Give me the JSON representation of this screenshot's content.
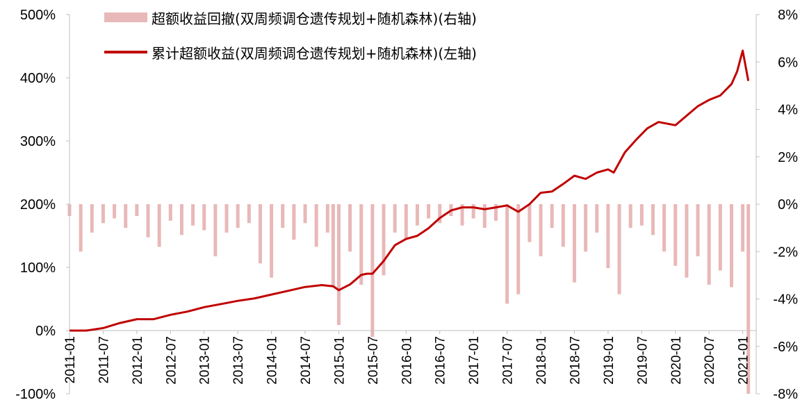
{
  "chart_data": {
    "type": "bar+line",
    "title": "",
    "x_ticks": [
      "2011-01",
      "2011-07",
      "2012-01",
      "2012-07",
      "2013-01",
      "2013-07",
      "2014-01",
      "2014-07",
      "2015-01",
      "2015-07",
      "2016-01",
      "2016-07",
      "2017-01",
      "2017-07",
      "2018-01",
      "2018-07",
      "2019-01",
      "2019-07",
      "2020-01",
      "2020-07",
      "2021-01"
    ],
    "left_axis": {
      "label": "",
      "ylim": [
        -100,
        500
      ],
      "ticks": [
        -100,
        0,
        100,
        200,
        300,
        400,
        500
      ],
      "tick_labels": [
        "-100%",
        "0%",
        "100%",
        "200%",
        "300%",
        "400%",
        "500%"
      ]
    },
    "right_axis": {
      "label": "",
      "ylim": [
        -8,
        8
      ],
      "ticks": [
        -8,
        -6,
        -4,
        -2,
        0,
        2,
        4,
        6,
        8
      ],
      "tick_labels": [
        "-8%",
        "-6%",
        "-4%",
        "-2%",
        "0%",
        "2%",
        "4%",
        "6%",
        "8%"
      ]
    },
    "legend_position": "top-left",
    "grid": false,
    "series": [
      {
        "name": "超额收益回撤(双周频调仓遗传规划+随机森林)(右轴)",
        "type": "bar",
        "axis": "right",
        "color": "#e9b8b8",
        "x": [
          "2011-01",
          "2011-03",
          "2011-05",
          "2011-07",
          "2011-09",
          "2011-11",
          "2012-01",
          "2012-03",
          "2012-05",
          "2012-07",
          "2012-09",
          "2012-11",
          "2013-01",
          "2013-03",
          "2013-05",
          "2013-07",
          "2013-09",
          "2013-11",
          "2014-01",
          "2014-03",
          "2014-05",
          "2014-07",
          "2014-09",
          "2014-11",
          "2014-12",
          "2015-01",
          "2015-03",
          "2015-05",
          "2015-07",
          "2015-09",
          "2015-11",
          "2016-01",
          "2016-03",
          "2016-05",
          "2016-07",
          "2016-09",
          "2016-11",
          "2017-01",
          "2017-03",
          "2017-05",
          "2017-07",
          "2017-09",
          "2017-11",
          "2018-01",
          "2018-03",
          "2018-05",
          "2018-07",
          "2018-09",
          "2018-11",
          "2019-01",
          "2019-03",
          "2019-05",
          "2019-07",
          "2019-09",
          "2019-11",
          "2020-01",
          "2020-03",
          "2020-05",
          "2020-07",
          "2020-09",
          "2020-11",
          "2021-01",
          "2021-02"
        ],
        "values": [
          -0.5,
          -2.0,
          -1.2,
          -0.8,
          -0.6,
          -1.0,
          -0.5,
          -1.4,
          -1.8,
          -0.7,
          -1.3,
          -0.9,
          -1.1,
          -2.2,
          -1.2,
          -1.0,
          -0.8,
          -2.5,
          -3.1,
          -1.0,
          -1.5,
          -0.8,
          -1.8,
          -1.2,
          -3.5,
          -5.1,
          -2.0,
          -3.4,
          -5.6,
          -3.0,
          -1.2,
          -1.5,
          -0.9,
          -0.6,
          -0.8,
          -0.5,
          -0.9,
          -0.6,
          -1.0,
          -0.7,
          -4.2,
          -3.8,
          -1.6,
          -2.2,
          -1.0,
          -1.8,
          -3.3,
          -2.0,
          -1.2,
          -2.7,
          -3.8,
          -1.0,
          -0.9,
          -1.3,
          -2.0,
          -2.6,
          -3.1,
          -2.2,
          -3.4,
          -2.8,
          -3.5,
          -2.0,
          -8.0
        ]
      },
      {
        "name": "累计超额收益(双周频调仓遗传规划+随机森林)(左轴)",
        "type": "line",
        "axis": "left",
        "color": "#c00000",
        "x": [
          "2011-01",
          "2011-04",
          "2011-07",
          "2011-10",
          "2012-01",
          "2012-04",
          "2012-07",
          "2012-10",
          "2013-01",
          "2013-04",
          "2013-07",
          "2013-10",
          "2014-01",
          "2014-04",
          "2014-07",
          "2014-10",
          "2014-12",
          "2015-01",
          "2015-03",
          "2015-05",
          "2015-06",
          "2015-07",
          "2015-09",
          "2015-11",
          "2016-01",
          "2016-03",
          "2016-05",
          "2016-07",
          "2016-09",
          "2016-11",
          "2017-01",
          "2017-03",
          "2017-05",
          "2017-07",
          "2017-09",
          "2017-11",
          "2018-01",
          "2018-03",
          "2018-05",
          "2018-07",
          "2018-09",
          "2018-11",
          "2019-01",
          "2019-02",
          "2019-04",
          "2019-06",
          "2019-08",
          "2019-10",
          "2020-01",
          "2020-03",
          "2020-05",
          "2020-07",
          "2020-09",
          "2020-11",
          "2020-12",
          "2021-01",
          "2021-02"
        ],
        "values": [
          0,
          0,
          4,
          12,
          18,
          18,
          25,
          30,
          37,
          42,
          47,
          51,
          57,
          63,
          69,
          72,
          70,
          64,
          73,
          88,
          90,
          90,
          110,
          135,
          145,
          150,
          162,
          178,
          190,
          195,
          195,
          192,
          195,
          198,
          188,
          200,
          218,
          220,
          232,
          245,
          240,
          250,
          255,
          250,
          282,
          302,
          320,
          330,
          325,
          340,
          355,
          365,
          372,
          390,
          410,
          443,
          395
        ]
      }
    ]
  }
}
